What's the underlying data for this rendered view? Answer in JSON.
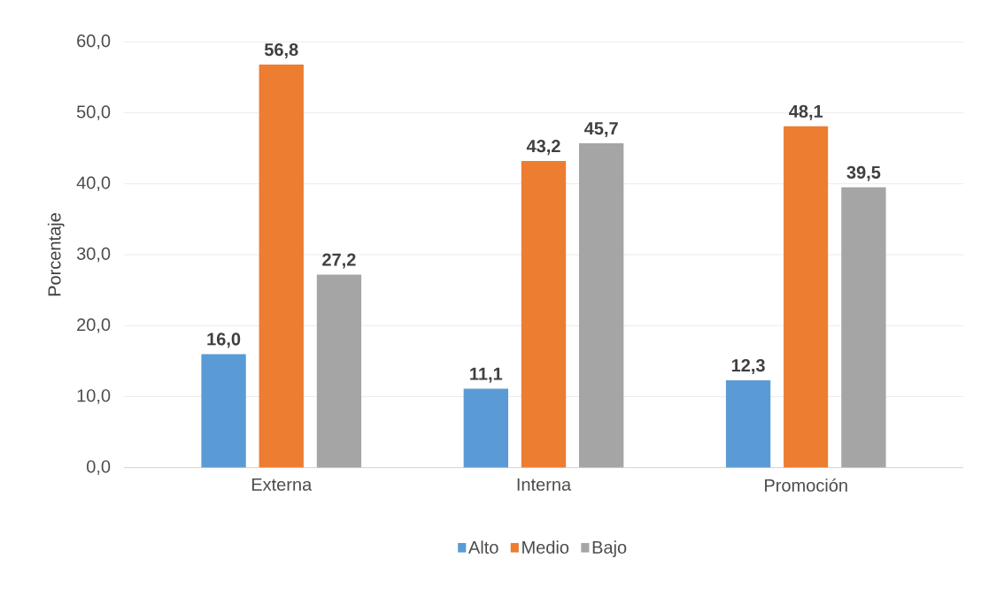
{
  "chart_data": {
    "type": "bar",
    "ylabel": "Porcentaje",
    "categories": [
      "Externa",
      "Interna",
      "Promoción"
    ],
    "series": [
      {
        "name": "Alto",
        "color": "#5b9bd5",
        "values": [
          16.0,
          11.1,
          12.3
        ],
        "value_labels": [
          "16,0",
          "11,1",
          "12,3"
        ]
      },
      {
        "name": "Medio",
        "color": "#ed7d31",
        "values": [
          56.8,
          43.2,
          48.1
        ],
        "value_labels": [
          "56,8",
          "43,2",
          "48,1"
        ]
      },
      {
        "name": "Bajo",
        "color": "#a5a5a5",
        "values": [
          27.2,
          45.7,
          39.5
        ],
        "value_labels": [
          "27,2",
          "45,7",
          "39,5"
        ]
      }
    ],
    "ylim": [
      0,
      60
    ],
    "yticks": [
      {
        "value": 0,
        "label": "0,0"
      },
      {
        "value": 10,
        "label": "10,0"
      },
      {
        "value": 20,
        "label": "20,0"
      },
      {
        "value": 30,
        "label": "30,0"
      },
      {
        "value": 40,
        "label": "40,0"
      },
      {
        "value": 50,
        "label": "50,0"
      },
      {
        "value": 60,
        "label": "60,0"
      }
    ],
    "grid": "y",
    "legend": "bottom"
  }
}
